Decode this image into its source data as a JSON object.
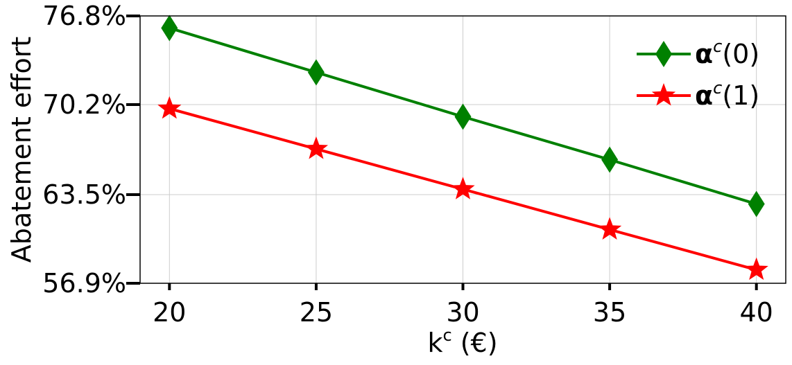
{
  "chart_data": {
    "type": "line",
    "title": "",
    "xlabel": {
      "base": "k",
      "sup": "c",
      "rest": " (€)"
    },
    "ylabel": "Abatement effort",
    "x": [
      20,
      25,
      30,
      35,
      40
    ],
    "xlim": [
      19,
      41
    ],
    "ylim": [
      56.9,
      76.8
    ],
    "xticks": [
      20,
      25,
      30,
      35,
      40
    ],
    "xtick_labels": [
      "20",
      "25",
      "30",
      "35",
      "40"
    ],
    "yticks": [
      56.9,
      63.5,
      70.2,
      76.8
    ],
    "ytick_labels": [
      "56.9%",
      "63.5%",
      "70.2%",
      "76.8%"
    ],
    "grid": true,
    "legend_position": "top-right",
    "series": [
      {
        "name": "α^c(0)",
        "label_bold": "α",
        "label_sup": "c",
        "label_rest": "(0)",
        "color": "#008000",
        "marker": "diamond",
        "values": [
          75.9,
          72.6,
          69.3,
          66.1,
          62.8
        ]
      },
      {
        "name": "α^c(1)",
        "label_bold": "α",
        "label_sup": "c",
        "label_rest": "(1)",
        "color": "#ff0000",
        "marker": "star",
        "values": [
          69.9,
          66.9,
          63.9,
          60.9,
          57.9
        ]
      }
    ]
  }
}
